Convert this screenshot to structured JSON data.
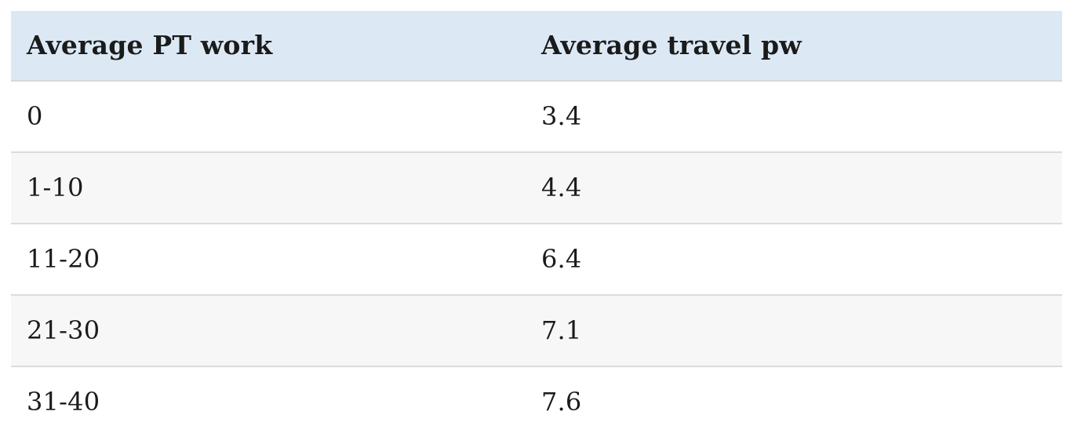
{
  "table": {
    "columns": [
      {
        "label": "Average PT work"
      },
      {
        "label": "Average travel pw"
      }
    ],
    "rows": [
      {
        "pt_work": "0",
        "travel_pw": "3.4"
      },
      {
        "pt_work": "1-10",
        "travel_pw": "4.4"
      },
      {
        "pt_work": "11-20",
        "travel_pw": "6.4"
      },
      {
        "pt_work": "21-30",
        "travel_pw": "7.1"
      },
      {
        "pt_work": "31-40",
        "travel_pw": "7.6"
      }
    ]
  },
  "chart_data": {
    "type": "table",
    "columns": [
      "Average PT work",
      "Average travel pw"
    ],
    "rows": [
      [
        "0",
        "3.4"
      ],
      [
        "1-10",
        "4.4"
      ],
      [
        "11-20",
        "6.4"
      ],
      [
        "21-30",
        "7.1"
      ],
      [
        "31-40",
        "7.6"
      ]
    ],
    "notes": "Average public-transport/part-time work hours band vs average travel per week; last row partially cut off by viewport"
  },
  "colors": {
    "header_bg": "#dce9f5",
    "row_alt_bg": "#f7f7f7",
    "row_bg": "#ffffff",
    "header_border": "#d5d9dc",
    "row_border": "#dcdcdc",
    "text": "#1b1b1b"
  }
}
